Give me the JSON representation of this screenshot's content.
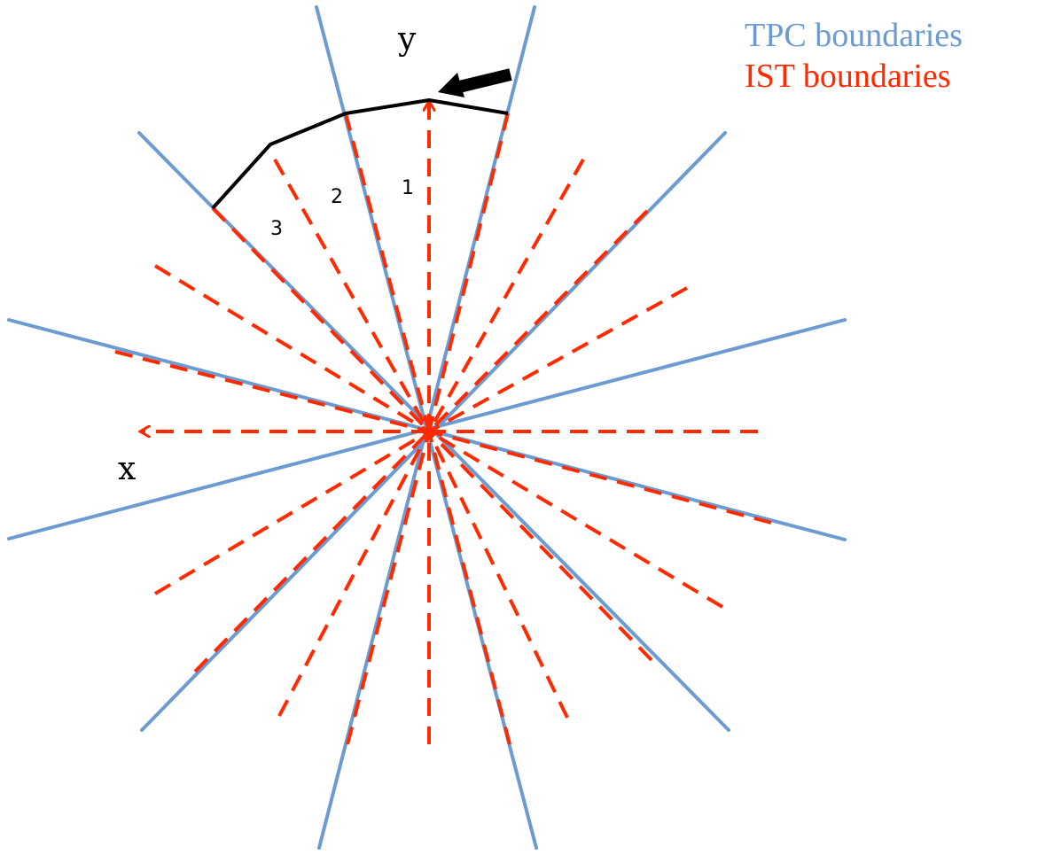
{
  "legend": {
    "tpc_label": "TPC boundaries",
    "ist_label": "IST boundaries"
  },
  "axes": {
    "x_label": "x",
    "y_label": "y"
  },
  "segments": {
    "seg1": "1",
    "seg2": "2",
    "seg3": "3"
  },
  "colors": {
    "tpc": "#6b9bd1",
    "ist": "#ff2a00",
    "outline": "#000000",
    "arrow": "#000000"
  },
  "icons": {
    "rotation_arrow": "thick-left-arrow-icon"
  }
}
